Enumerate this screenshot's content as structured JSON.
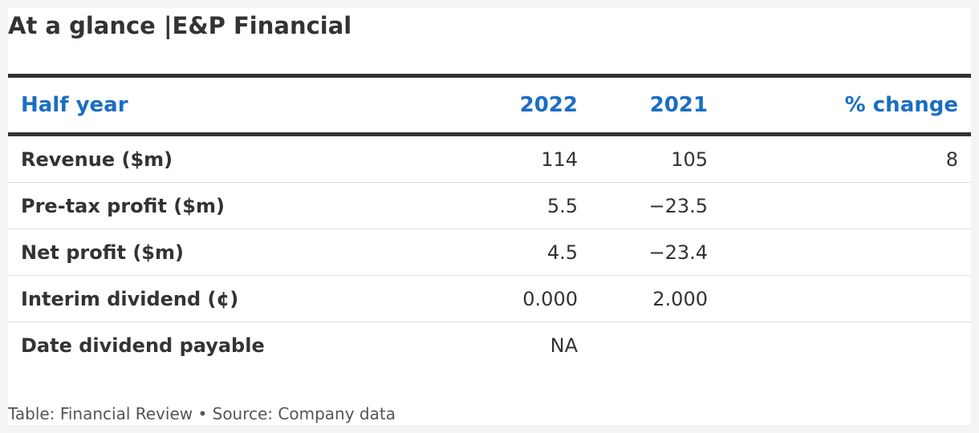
{
  "title": "At a glance |E&P Financial",
  "chart_data": {
    "type": "table",
    "columns": [
      "Half year",
      "2022",
      "2021",
      "% change"
    ],
    "rows": [
      [
        "Revenue ($m)",
        "114",
        "105",
        "8"
      ],
      [
        "Pre-tax profit ($m)",
        "5.5",
        "−23.5",
        ""
      ],
      [
        "Net profit ($m)",
        "4.5",
        "−23.4",
        ""
      ],
      [
        "Interim dividend (¢)",
        "0.000",
        "2.000",
        ""
      ],
      [
        "Date dividend payable",
        "NA",
        "",
        ""
      ]
    ]
  },
  "footer": "Table: Financial Review • Source: Company data",
  "colors": {
    "header_text": "#1a6ec3",
    "body_text": "#333333",
    "rule": "#333333"
  }
}
